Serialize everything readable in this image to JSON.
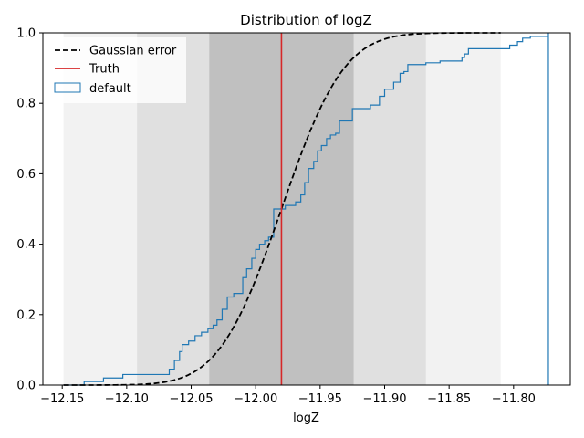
{
  "chart_data": {
    "type": "line",
    "title": "Distribution of logZ",
    "xlabel": "logZ",
    "ylabel": "",
    "xlim": [
      -12.165,
      -11.756
    ],
    "ylim": [
      0,
      1
    ],
    "x_ticks": [
      -12.15,
      -12.1,
      -12.05,
      -12.0,
      -11.95,
      -11.9,
      -11.85,
      -11.8
    ],
    "x_tick_labels": [
      "−12.15",
      "−12.10",
      "−12.05",
      "−12.00",
      "−11.95",
      "−11.90",
      "−11.85",
      "−11.80"
    ],
    "y_ticks": [
      0.0,
      0.2,
      0.4,
      0.6,
      0.8,
      1.0
    ],
    "y_tick_labels": [
      "0.0",
      "0.2",
      "0.4",
      "0.6",
      "0.8",
      "1.0"
    ],
    "grid": false,
    "legend_position": "upper-left",
    "gaussian": {
      "mean": -11.98,
      "sigma": 0.038
    },
    "sigma_bands": [
      {
        "from": -12.149,
        "to": -11.81,
        "color": "#f2f2f2"
      },
      {
        "from": -12.092,
        "to": -11.868,
        "color": "#e0e0e0"
      },
      {
        "from": -12.036,
        "to": -11.924,
        "color": "#c0c0c0"
      }
    ],
    "series": [
      {
        "name": "Gaussian error",
        "style": "dashed",
        "color": "#000000"
      },
      {
        "name": "Truth",
        "style": "vline",
        "color": "#d62728",
        "x": -11.98
      },
      {
        "name": "default",
        "style": "step",
        "color": "#1f77b4",
        "x": [
          -12.149,
          -12.133,
          -12.118,
          -12.103,
          -12.087,
          -12.07,
          -12.067,
          -12.063,
          -12.059,
          -12.057,
          -12.052,
          -12.047,
          -12.042,
          -12.037,
          -12.033,
          -12.03,
          -12.026,
          -12.022,
          -12.02,
          -12.017,
          -12.01,
          -12.007,
          -12.003,
          -12.0,
          -11.997,
          -11.993,
          -11.99,
          -11.986,
          -11.983,
          -11.98,
          -11.977,
          -11.969,
          -11.965,
          -11.962,
          -11.959,
          -11.955,
          -11.952,
          -11.949,
          -11.945,
          -11.942,
          -11.938,
          -11.935,
          -11.931,
          -11.925,
          -11.918,
          -11.911,
          -11.904,
          -11.9,
          -11.893,
          -11.888,
          -11.885,
          -11.882,
          -11.875,
          -11.868,
          -11.857,
          -11.847,
          -11.84,
          -11.838,
          -11.835,
          -11.815,
          -11.803,
          -11.797,
          -11.793,
          -11.787,
          -11.773
        ],
        "y": [
          0.0,
          0.01,
          0.02,
          0.03,
          0.03,
          0.03,
          0.045,
          0.07,
          0.095,
          0.115,
          0.125,
          0.14,
          0.15,
          0.16,
          0.17,
          0.185,
          0.215,
          0.25,
          0.25,
          0.26,
          0.305,
          0.33,
          0.36,
          0.385,
          0.4,
          0.41,
          0.42,
          0.5,
          0.5,
          0.5,
          0.51,
          0.52,
          0.54,
          0.575,
          0.615,
          0.635,
          0.665,
          0.68,
          0.7,
          0.71,
          0.715,
          0.75,
          0.75,
          0.785,
          0.785,
          0.795,
          0.82,
          0.84,
          0.86,
          0.885,
          0.89,
          0.91,
          0.91,
          0.915,
          0.92,
          0.92,
          0.93,
          0.94,
          0.955,
          0.955,
          0.965,
          0.975,
          0.985,
          0.99,
          1.0
        ]
      }
    ]
  }
}
